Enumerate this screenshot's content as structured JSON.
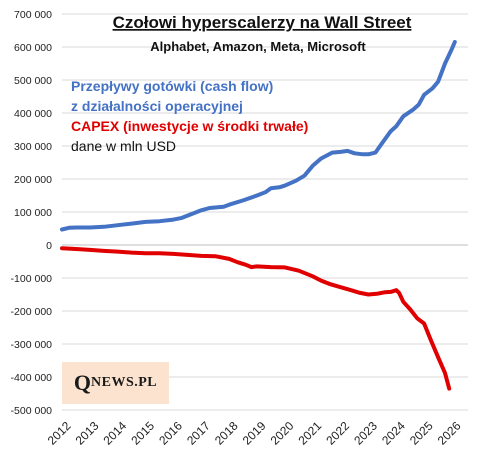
{
  "chart_data": {
    "type": "line",
    "title": "Czołowi hyperscalerzy na Wall Street",
    "subtitle": "Alphabet, Amazon, Meta, Microsoft",
    "annotations": [
      {
        "text": "Przepływy gotówki (cash flow)",
        "color": "#4472c4"
      },
      {
        "text": "z działalności operacyjnej",
        "color": "#4472c4"
      },
      {
        "text": "CAPEX (inwestycje w środki trwałe)",
        "color": "#e00000"
      },
      {
        "text": "dane w mln USD",
        "color": "#111111"
      }
    ],
    "ylim": [
      -500000,
      700000
    ],
    "xlim": [
      2012,
      2026.2
    ],
    "y_ticks": [
      {
        "value": 700000,
        "label": "700 000"
      },
      {
        "value": 600000,
        "label": "600 000"
      },
      {
        "value": 500000,
        "label": "500 000"
      },
      {
        "value": 400000,
        "label": "400 000"
      },
      {
        "value": 300000,
        "label": "300 000"
      },
      {
        "value": 200000,
        "label": "200 000"
      },
      {
        "value": 100000,
        "label": "100 000"
      },
      {
        "value": 0,
        "label": "0"
      },
      {
        "value": -100000,
        "label": "-100 000"
      },
      {
        "value": -200000,
        "label": "-200 000"
      },
      {
        "value": -300000,
        "label": "-300 000"
      },
      {
        "value": -400000,
        "label": "-400 000"
      },
      {
        "value": -500000,
        "label": "-500 000"
      }
    ],
    "x_ticks": [
      "2012",
      "2013",
      "2014",
      "2015",
      "2016",
      "2017",
      "2018",
      "2019",
      "2020",
      "2021",
      "2022",
      "2023",
      "2024",
      "2025",
      "2026"
    ],
    "grid": true,
    "series": [
      {
        "color": "#4472c4",
        "points": [
          [
            2012.0,
            47000
          ],
          [
            2012.25,
            52000
          ],
          [
            2012.5,
            53000
          ],
          [
            2013.0,
            53000
          ],
          [
            2013.5,
            55000
          ],
          [
            2014.0,
            60000
          ],
          [
            2014.5,
            65000
          ],
          [
            2015.0,
            70000
          ],
          [
            2015.5,
            72000
          ],
          [
            2016.0,
            77000
          ],
          [
            2016.3,
            82000
          ],
          [
            2016.6,
            92000
          ],
          [
            2017.0,
            105000
          ],
          [
            2017.3,
            112000
          ],
          [
            2017.8,
            116000
          ],
          [
            2018.0,
            122000
          ],
          [
            2018.5,
            135000
          ],
          [
            2019.0,
            150000
          ],
          [
            2019.3,
            160000
          ],
          [
            2019.5,
            172000
          ],
          [
            2019.8,
            175000
          ],
          [
            2020.0,
            180000
          ],
          [
            2020.4,
            195000
          ],
          [
            2020.7,
            210000
          ],
          [
            2021.0,
            240000
          ],
          [
            2021.3,
            262000
          ],
          [
            2021.7,
            280000
          ],
          [
            2022.0,
            282000
          ],
          [
            2022.25,
            285000
          ],
          [
            2022.5,
            278000
          ],
          [
            2022.8,
            275000
          ],
          [
            2023.0,
            275000
          ],
          [
            2023.25,
            280000
          ],
          [
            2023.5,
            310000
          ],
          [
            2023.8,
            345000
          ],
          [
            2024.0,
            360000
          ],
          [
            2024.25,
            390000
          ],
          [
            2024.6,
            410000
          ],
          [
            2024.8,
            425000
          ],
          [
            2025.0,
            455000
          ],
          [
            2025.3,
            475000
          ],
          [
            2025.5,
            495000
          ],
          [
            2025.75,
            550000
          ],
          [
            2026.0,
            595000
          ],
          [
            2026.1,
            615000
          ]
        ]
      },
      {
        "color": "#e00000",
        "points": [
          [
            2012.0,
            -10000
          ],
          [
            2012.5,
            -12000
          ],
          [
            2013.0,
            -15000
          ],
          [
            2013.5,
            -18000
          ],
          [
            2014.0,
            -20000
          ],
          [
            2014.5,
            -23000
          ],
          [
            2015.0,
            -25000
          ],
          [
            2015.5,
            -25000
          ],
          [
            2016.0,
            -27000
          ],
          [
            2016.5,
            -30000
          ],
          [
            2017.0,
            -33000
          ],
          [
            2017.5,
            -34000
          ],
          [
            2018.0,
            -42000
          ],
          [
            2018.3,
            -52000
          ],
          [
            2018.6,
            -60000
          ],
          [
            2018.8,
            -67000
          ],
          [
            2019.0,
            -65000
          ],
          [
            2019.5,
            -67000
          ],
          [
            2020.0,
            -68000
          ],
          [
            2020.5,
            -78000
          ],
          [
            2021.0,
            -95000
          ],
          [
            2021.3,
            -108000
          ],
          [
            2021.6,
            -118000
          ],
          [
            2022.0,
            -128000
          ],
          [
            2022.3,
            -135000
          ],
          [
            2022.7,
            -145000
          ],
          [
            2023.0,
            -150000
          ],
          [
            2023.3,
            -148000
          ],
          [
            2023.6,
            -143000
          ],
          [
            2023.8,
            -142000
          ],
          [
            2024.0,
            -137000
          ],
          [
            2024.1,
            -145000
          ],
          [
            2024.25,
            -172000
          ],
          [
            2024.5,
            -195000
          ],
          [
            2024.75,
            -222000
          ],
          [
            2025.0,
            -238000
          ],
          [
            2025.25,
            -290000
          ],
          [
            2025.5,
            -340000
          ],
          [
            2025.75,
            -388000
          ],
          [
            2025.9,
            -435000
          ]
        ]
      }
    ]
  },
  "logo": {
    "q": "Q",
    "rest": "NEWS.PL"
  }
}
